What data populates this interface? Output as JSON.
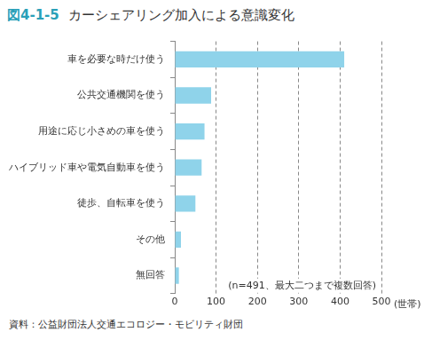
{
  "chart_data": {
    "type": "bar",
    "orientation": "horizontal",
    "title": "図4-1-5　カーシェアリング加入による意識変化",
    "categories": [
      "車を必要な時だけ使う",
      "公共交通機関を使う",
      "用途に応じ小さめの車を使う",
      "ハイブリッド車や電気自動車を使う",
      "徒歩、自転車を使う",
      "その他",
      "無回答"
    ],
    "values": [
      410,
      88,
      72,
      65,
      50,
      15,
      10
    ],
    "color": "#8fd3ea",
    "xlim": [
      0,
      500
    ],
    "xticks": [
      0,
      100,
      200,
      300,
      400,
      500
    ],
    "x_label": "(世帯)",
    "annotations": [
      "(n=491、最大二つまで複数回答)"
    ],
    "source": "資料：公益財団法人交通エコロジー・モビリティ財団",
    "grid": true,
    "legend": false,
    "data_labels": false
  }
}
